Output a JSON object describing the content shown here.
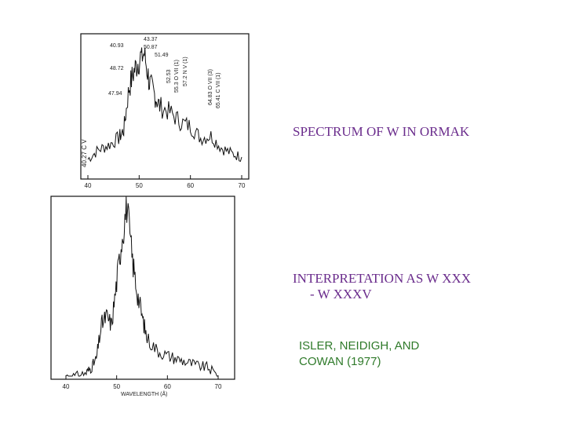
{
  "slide": {
    "title_spectrum": "SPECTRUM OF W IN ORMAK",
    "interpretation_line1": "INTERPRETATION AS W XXX",
    "interpretation_line2": "- W XXXV",
    "citation_line1": "ISLER, NEIDIGH, AND",
    "citation_line2": "COWAN (1977)",
    "colors": {
      "title": "#6a2c8c",
      "citation": "#2f7a2a"
    }
  },
  "chart_data": [
    {
      "type": "line",
      "xlim": [
        40,
        70
      ],
      "xticks": [
        "40",
        "50",
        "60",
        "70"
      ],
      "ylabel": "40.27 C V",
      "annotations": [
        "40.93",
        "43.37",
        "50.87",
        "51.49",
        "48.72",
        "47.94",
        "52.53",
        "55.3 O VII (1)",
        "57.2 N V (1)",
        "64.83 O VII (3)",
        "65.41 C VII (1)"
      ],
      "series": [
        {
          "x": [
            40,
            42,
            44,
            46,
            47,
            48,
            49,
            50,
            51,
            52,
            53,
            54,
            56,
            58,
            60,
            62,
            64,
            66,
            68,
            70
          ],
          "y": [
            0.1,
            0.18,
            0.22,
            0.28,
            0.35,
            0.7,
            0.85,
            0.95,
            1.0,
            0.75,
            0.65,
            0.55,
            0.5,
            0.42,
            0.38,
            0.28,
            0.3,
            0.2,
            0.15,
            0.12
          ]
        }
      ]
    },
    {
      "type": "line",
      "xlim": [
        40,
        70
      ],
      "xticks": [
        "40",
        "50",
        "60",
        "70"
      ],
      "xlabel": "WAVELENGTH (Å)",
      "series": [
        {
          "x": [
            40,
            42,
            44,
            45,
            46,
            47,
            48,
            49,
            50,
            51,
            52,
            53,
            54,
            55,
            56,
            58,
            60,
            62,
            64,
            66,
            68,
            70
          ],
          "y": [
            0,
            0,
            0.02,
            0.05,
            0.1,
            0.3,
            0.35,
            0.3,
            0.55,
            0.8,
            1.0,
            0.7,
            0.5,
            0.35,
            0.22,
            0.15,
            0.12,
            0.1,
            0.08,
            0.06,
            0.05,
            0.0
          ]
        }
      ]
    }
  ]
}
